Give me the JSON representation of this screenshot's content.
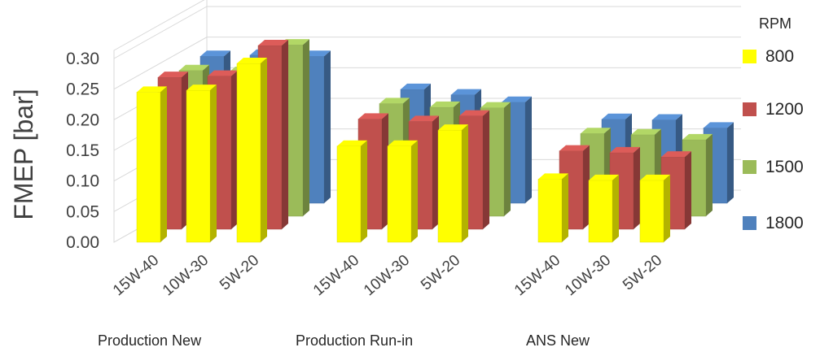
{
  "chart_data": {
    "type": "bar",
    "subtype": "3d-clustered-bar",
    "ylabel": "FMEP [bar]",
    "ylim": [
      0,
      0.3
    ],
    "yticks": [
      "0.00",
      "0.05",
      "0.10",
      "0.15",
      "0.20",
      "0.25",
      "0.30"
    ],
    "grid": true,
    "legend_title": "RPM",
    "legend_position": "right",
    "groups": [
      {
        "name": "Production New",
        "categories": [
          "15W-40",
          "10W-30",
          "5W-20"
        ]
      },
      {
        "name": "Production Run-in",
        "categories": [
          "15W-40",
          "10W-30",
          "5W-20"
        ]
      },
      {
        "name": "ANS New",
        "categories": [
          "15W-40",
          "10W-30",
          "5W-20"
        ]
      }
    ],
    "series": [
      {
        "name": "800",
        "color": "#ffff00",
        "values": [
          0.245,
          0.248,
          0.292,
          0.157,
          0.157,
          0.183,
          0.103,
          0.101,
          0.101
        ]
      },
      {
        "name": "1200",
        "color": "#c0504d",
        "values": [
          0.248,
          0.25,
          0.3,
          0.18,
          0.176,
          0.185,
          0.128,
          0.125,
          0.118
        ]
      },
      {
        "name": "1500",
        "color": "#9bbb59",
        "values": [
          0.238,
          0.235,
          0.28,
          0.184,
          0.178,
          0.177,
          0.135,
          0.133,
          0.125
        ]
      },
      {
        "name": "1800",
        "color": "#4f81bd",
        "values": [
          0.24,
          0.242,
          0.24,
          0.186,
          0.177,
          0.165,
          0.137,
          0.136,
          0.123
        ]
      }
    ]
  }
}
